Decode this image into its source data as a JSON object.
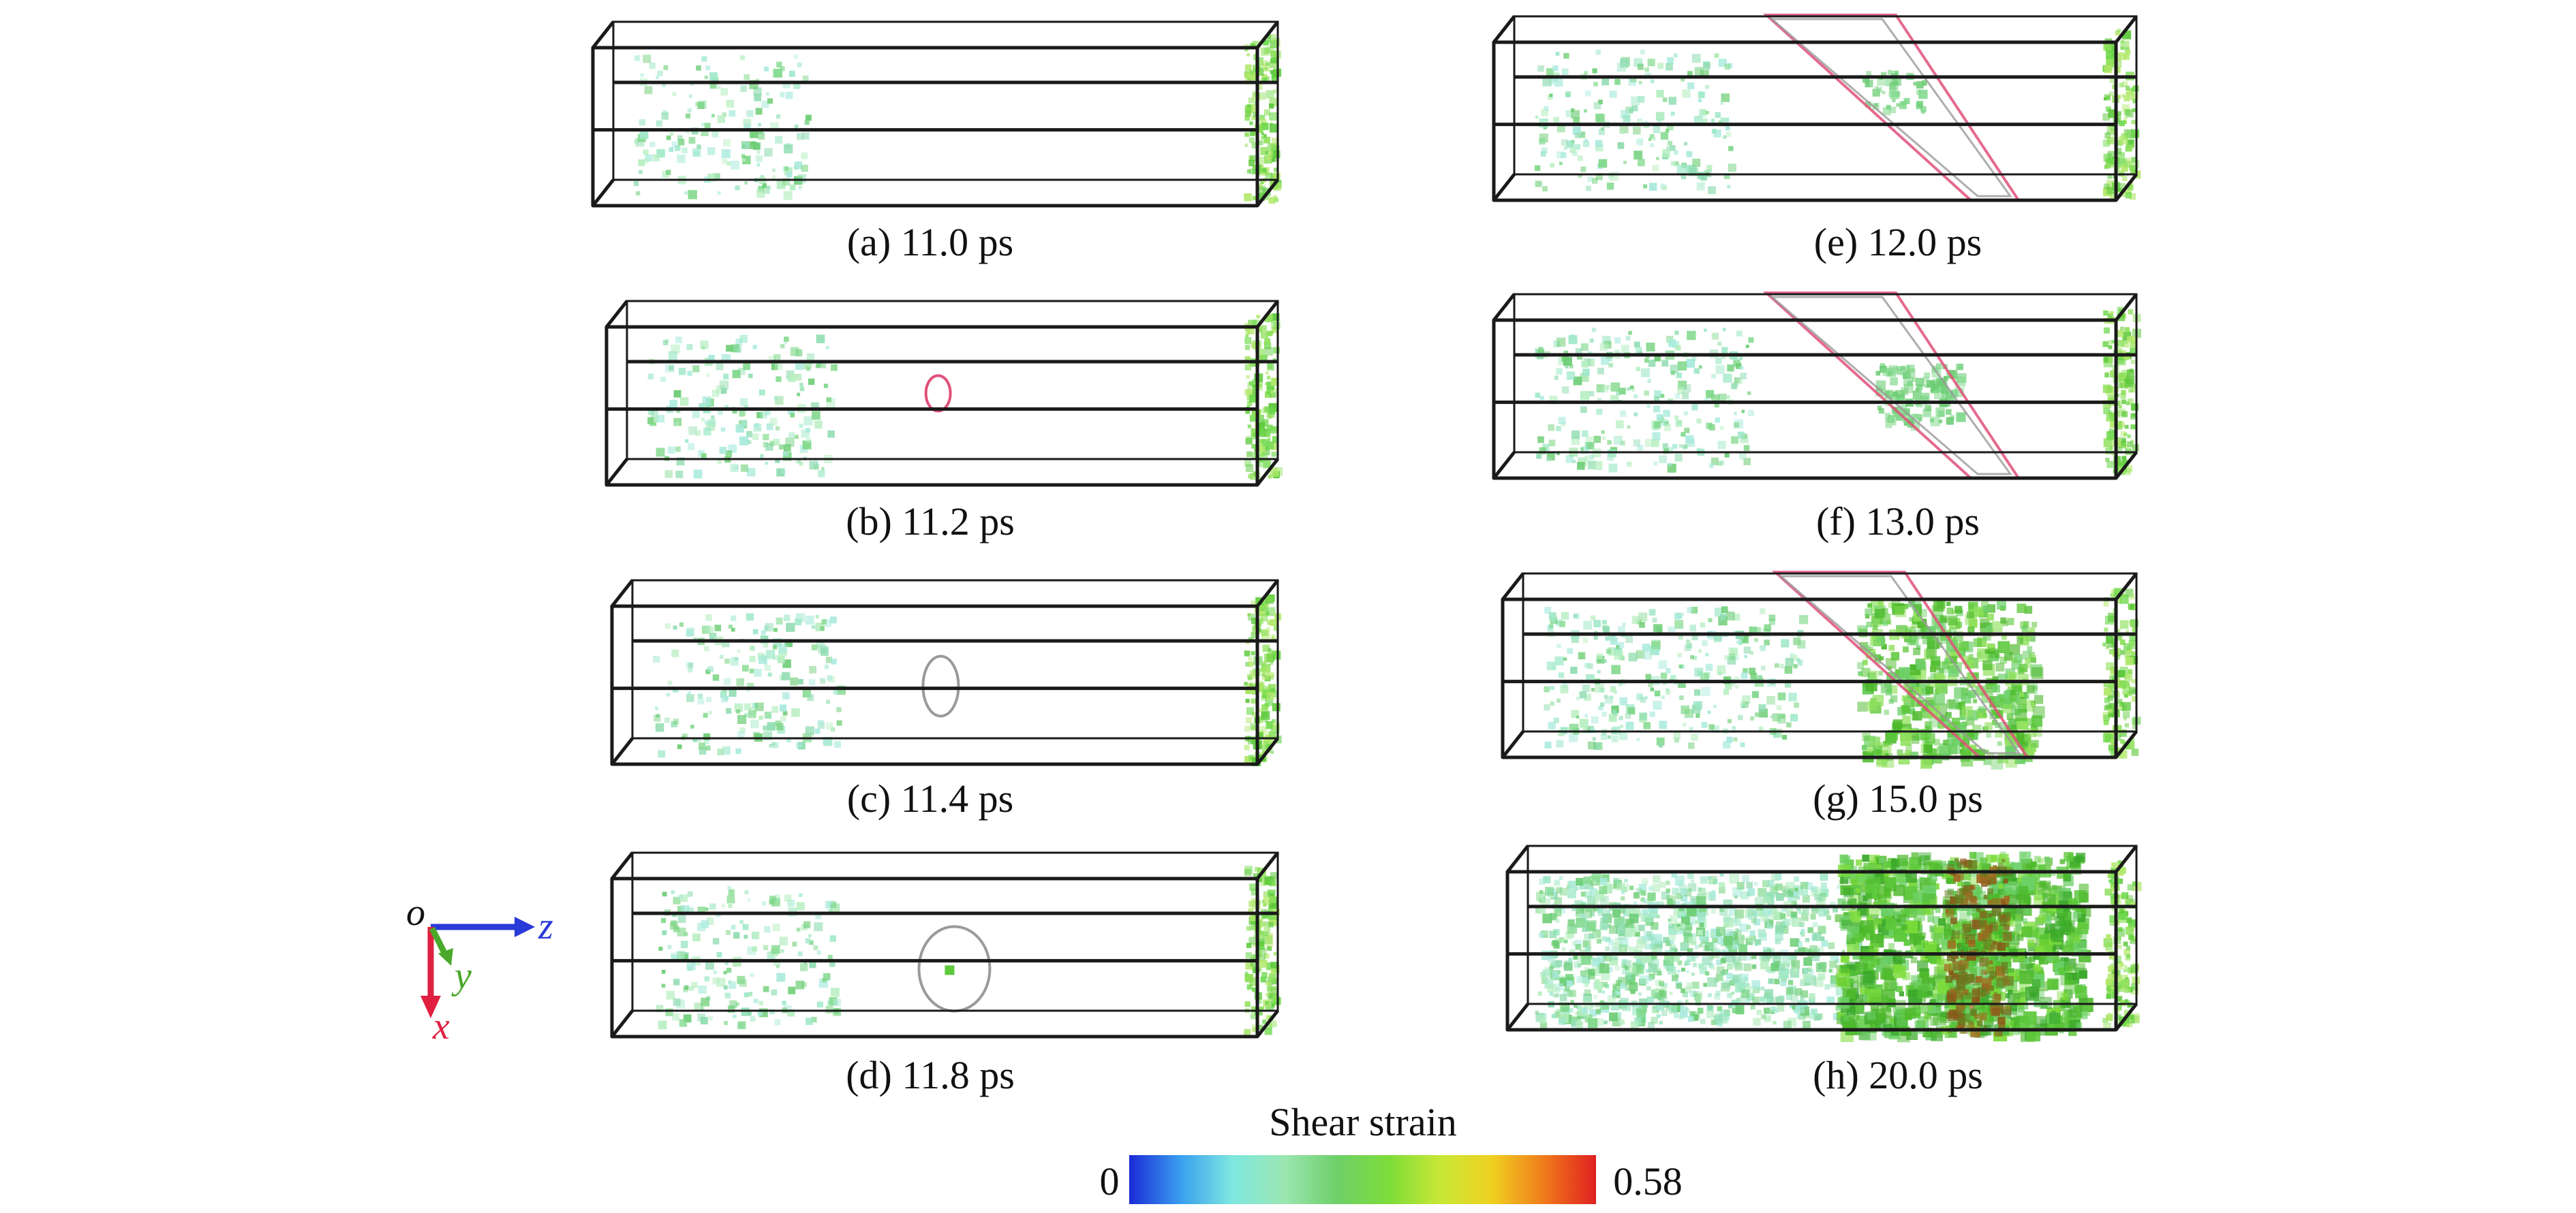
{
  "panels": [
    {
      "id": "a",
      "caption": "(a) 11.0 ps",
      "feature": "none",
      "cloud_level": 0.25
    },
    {
      "id": "b",
      "caption": "(b) 11.2 ps",
      "feature": "small-loop",
      "cloud_level": 0.3
    },
    {
      "id": "c",
      "caption": "(c) 11.4 ps",
      "feature": "medium-loop",
      "cloud_level": 0.3
    },
    {
      "id": "d",
      "caption": "(d) 11.8 ps",
      "feature": "large-loop",
      "cloud_level": 0.3
    },
    {
      "id": "e",
      "caption": "(e) 12.0 ps",
      "feature": "parallelogram",
      "cloud_level": 0.35
    },
    {
      "id": "f",
      "caption": "(f) 13.0 ps",
      "feature": "parallelogram",
      "cloud_level": 0.45
    },
    {
      "id": "g",
      "caption": "(g) 15.0 ps",
      "feature": "parallelogram-strained",
      "cloud_level": 0.65
    },
    {
      "id": "h",
      "caption": "(h) 20.0 ps",
      "feature": "band",
      "cloud_level": 0.9
    }
  ],
  "axes": {
    "origin": "o",
    "z": "z",
    "y": "y",
    "x": "x"
  },
  "colorbar": {
    "title": "Shear strain",
    "min_label": "0",
    "max_label": "0.58",
    "stops": [
      "#1a2bd6",
      "#3aa0f0",
      "#7fe8e0",
      "#9be6b0",
      "#6ed06a",
      "#7ddc3a",
      "#c8e836",
      "#f0d020",
      "#f07a1c",
      "#e02020"
    ]
  },
  "colors": {
    "frame": "#1a1a1a",
    "loop_pink": "#e0507a",
    "loop_gray": "#9a9a9a",
    "strain_green": "#5cc83a",
    "strain_dark": "#8a5a1a",
    "axis_z": "#2a3ad8",
    "axis_y": "#4aa82a",
    "axis_x": "#e02040"
  }
}
